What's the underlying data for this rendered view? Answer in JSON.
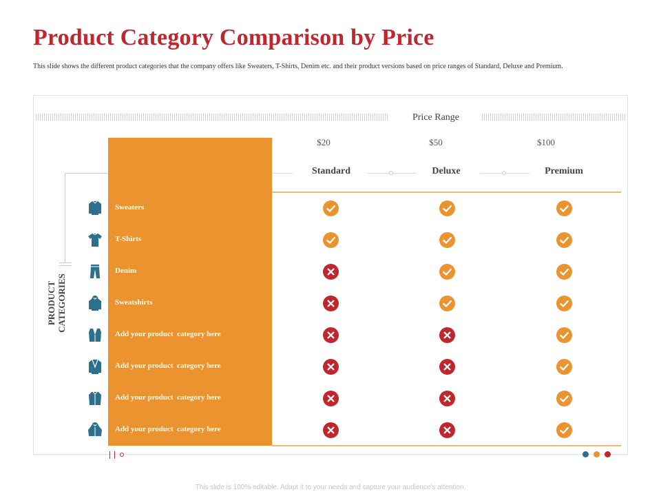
{
  "title": "Product Category Comparison by Price",
  "description": "This slide shows the different product categories that the company offers like Sweaters, T-Shirts, Denim etc. and their product versions based on price ranges of Standard, Deluxe and Premium.",
  "price_range_label": "Price Range",
  "side_label_line1": "PRODUCT",
  "side_label_line2": "CATEGORIES",
  "tiers": [
    {
      "price": "$20",
      "name": "Standard"
    },
    {
      "price": "$50",
      "name": "Deluxe"
    },
    {
      "price": "$100",
      "name": "Premium"
    }
  ],
  "rows": [
    {
      "label": "Sweaters",
      "icon": "sweater-icon",
      "marks": [
        "check",
        "check",
        "check"
      ]
    },
    {
      "label": "T-Shirts",
      "icon": "tshirt-icon",
      "marks": [
        "check",
        "check",
        "check"
      ]
    },
    {
      "label": "Denim",
      "icon": "jeans-icon",
      "marks": [
        "cross",
        "check",
        "check"
      ]
    },
    {
      "label": "Sweatshirts",
      "icon": "hoodie-icon",
      "marks": [
        "cross",
        "check",
        "check"
      ]
    },
    {
      "label": "Add your product  category here",
      "icon": "vest-icon",
      "marks": [
        "cross",
        "cross",
        "check"
      ]
    },
    {
      "label": "Add your product  category here",
      "icon": "blazer-icon",
      "marks": [
        "cross",
        "cross",
        "check"
      ]
    },
    {
      "label": "Add your product  category here",
      "icon": "jacket-icon",
      "marks": [
        "cross",
        "cross",
        "check"
      ]
    },
    {
      "label": "Add your product  category here",
      "icon": "coat-icon",
      "marks": [
        "cross",
        "cross",
        "check"
      ]
    }
  ],
  "colors": {
    "title": "#c0272d",
    "panel": "#eb932e",
    "check": "#eb932e",
    "cross": "#c0272d",
    "icon": "#2e6f8e",
    "dots": [
      "#2e6f8e",
      "#eb932e",
      "#c0272d"
    ]
  },
  "footer": "This slide is 100% editable. Adapt it to your needs and capture your audience's attention."
}
